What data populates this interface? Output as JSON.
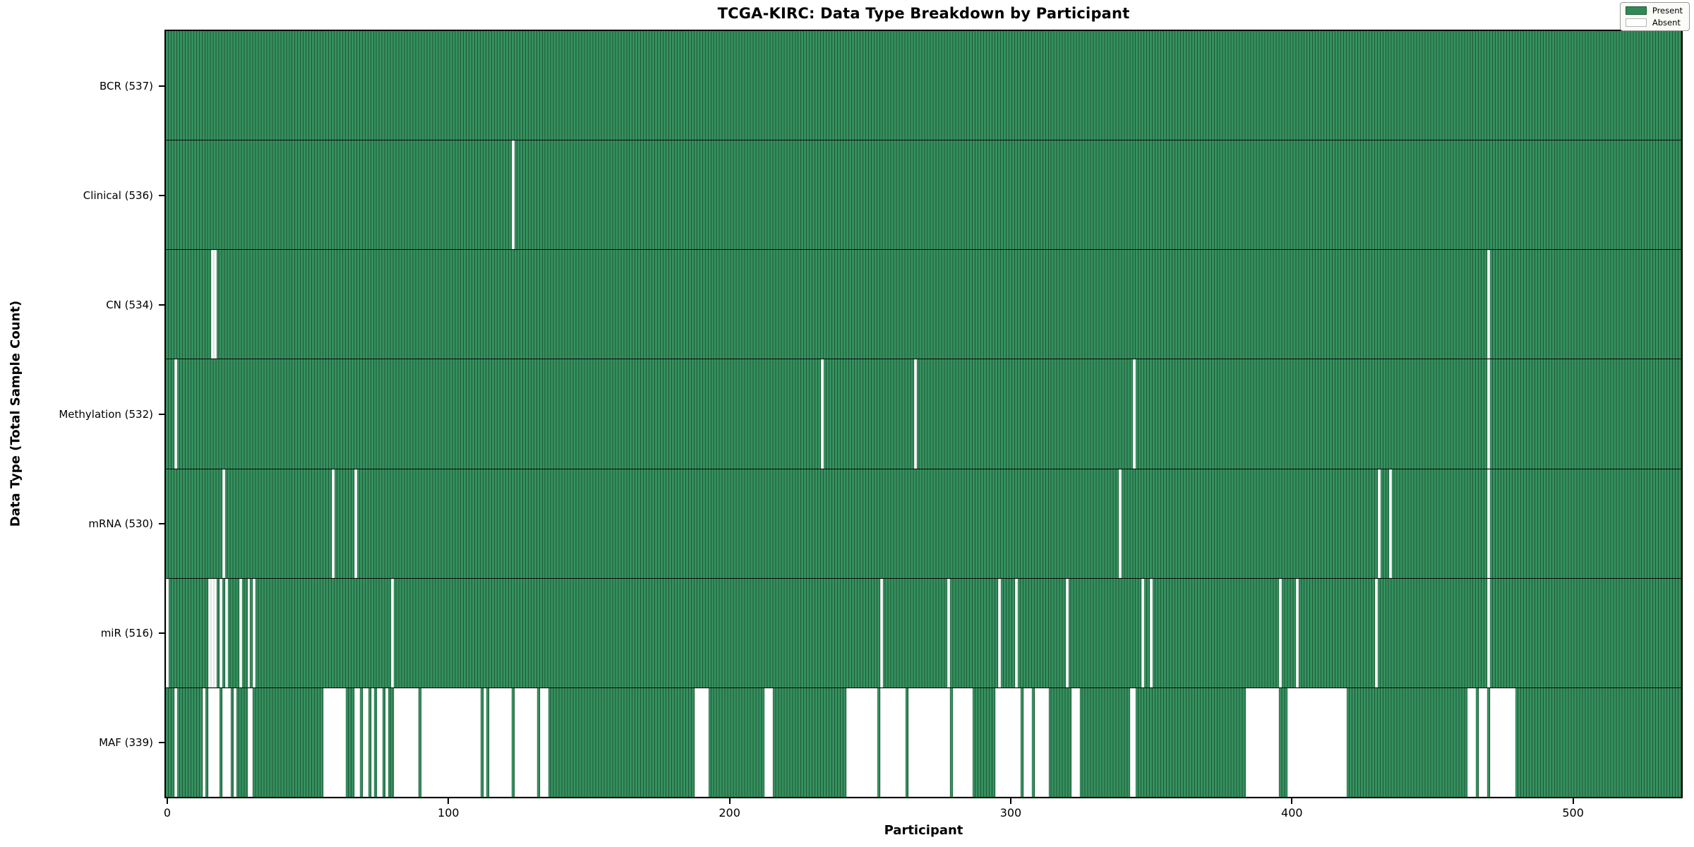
{
  "figure": {
    "title": "TCGA-KIRC: Data Type Breakdown by Participant",
    "xlabel": "Participant",
    "ylabel": "Data Type (Total Sample Count)"
  },
  "legend": {
    "present_label": "Present",
    "absent_label": "Absent"
  },
  "colors": {
    "present": "#2e8b57",
    "present_fill": "#35915f",
    "present_edge": "#1f5737",
    "absent": "#ffffff",
    "plot_border": "#000000",
    "row_divider": "#0a0a0a",
    "legend_bg": "#fbfbf7",
    "legend_border": "#9a9a9a"
  },
  "chart_data": {
    "type": "heatmap",
    "title": "TCGA-KIRC: Data Type Breakdown by Participant",
    "xlabel": "Participant",
    "ylabel": "Data Type (Total Sample Count)",
    "legend": [
      "Present",
      "Absent"
    ],
    "legend_position": "upper right",
    "grid": false,
    "n_participants": 537,
    "x_range": [
      0,
      537
    ],
    "x_ticks": [
      0,
      100,
      200,
      300,
      400,
      500
    ],
    "value_encoding": {
      "present": "seagreen bar",
      "absent": "white gap"
    },
    "rows": [
      {
        "name": "BCR",
        "label": "BCR (537)",
        "present_count": 537,
        "absent_participants": []
      },
      {
        "name": "Clinical",
        "label": "Clinical (536)",
        "present_count": 536,
        "absent_participants": [
          123
        ]
      },
      {
        "name": "CN",
        "label": "CN (534)",
        "present_count": 534,
        "absent_participants": [
          16,
          17,
          470
        ]
      },
      {
        "name": "Methylation",
        "label": "Methylation (532)",
        "present_count": 532,
        "absent_participants": [
          3,
          233,
          266,
          344,
          470
        ]
      },
      {
        "name": "mRNA",
        "label": "mRNA (530)",
        "present_count": 530,
        "absent_participants": [
          20,
          59,
          67,
          339,
          431,
          435,
          470
        ]
      },
      {
        "name": "miR",
        "label": "miR (516)",
        "present_count": 516,
        "absent_participants": [
          0,
          15,
          16,
          17,
          19,
          21,
          26,
          29,
          31,
          80,
          254,
          278,
          296,
          302,
          320,
          347,
          350,
          396,
          402,
          430,
          470
        ]
      },
      {
        "name": "MAF",
        "label": "MAF (339)",
        "present_count": 339,
        "absent_participants": [
          3,
          13,
          [
            15,
            18
          ],
          [
            20,
            22
          ],
          24,
          [
            29,
            30
          ],
          [
            56,
            63
          ],
          [
            67,
            68
          ],
          [
            70,
            71
          ],
          73,
          [
            75,
            76
          ],
          78,
          [
            81,
            89
          ],
          [
            91,
            111
          ],
          113,
          [
            115,
            122
          ],
          [
            124,
            131
          ],
          [
            133,
            135
          ],
          [
            188,
            192
          ],
          [
            213,
            215
          ],
          [
            242,
            252
          ],
          [
            254,
            262
          ],
          [
            264,
            278
          ],
          [
            280,
            286
          ],
          [
            295,
            303
          ],
          [
            305,
            307
          ],
          [
            309,
            313
          ],
          [
            322,
            324
          ],
          [
            343,
            344
          ],
          [
            384,
            395
          ],
          [
            399,
            419
          ],
          [
            463,
            465
          ],
          [
            467,
            469
          ],
          [
            471,
            479
          ]
        ]
      }
    ]
  }
}
